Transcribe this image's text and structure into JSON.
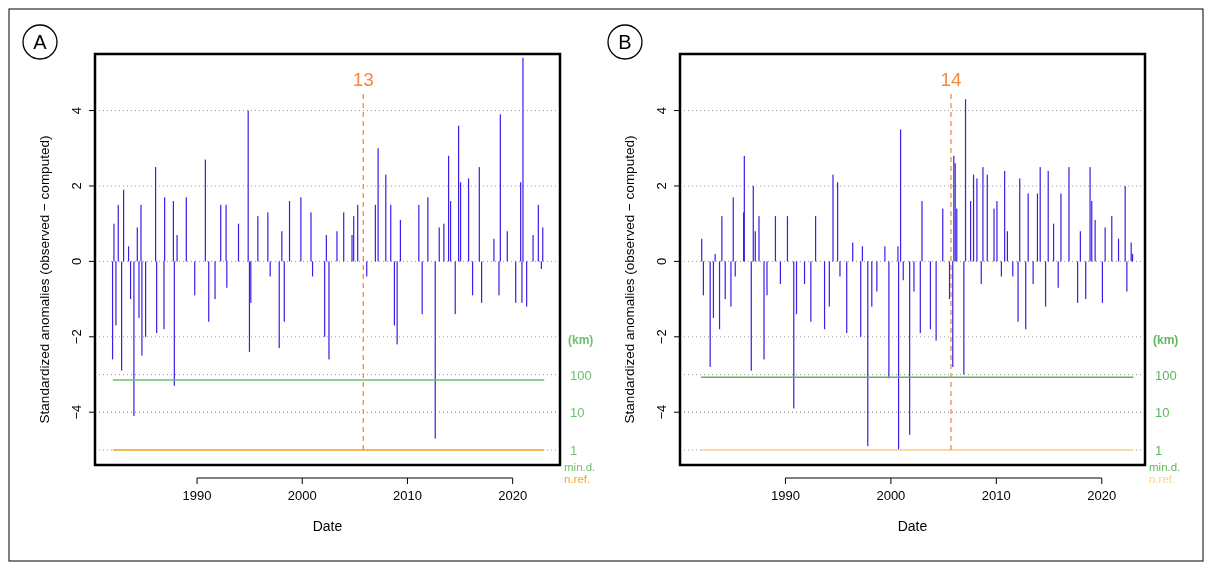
{
  "chart_data": [
    {
      "type": "bar",
      "title": "A",
      "xlabel": "Date",
      "ylabel": "Standardized anomalies (observed − computed)",
      "y2label": "(km)",
      "log": "y2",
      "grid": "y",
      "legend": "bottom right",
      "xlim": [
        1980.3,
        2024.5
      ],
      "xticks": [
        1990,
        2000,
        2010,
        2020
      ],
      "ylim": [
        -5.4,
        5.5
      ],
      "yticks": [
        -4,
        -2,
        0,
        2,
        4
      ],
      "y2lim": [
        0.4,
        32000000000
      ],
      "y2ticks": [
        1,
        10,
        100
      ],
      "ref_lines": [
        {
          "axis": "x",
          "value": 2005.8,
          "color": "#f7893b",
          "line_style": "dashed"
        }
      ],
      "annotations": [
        "13"
      ],
      "series": [
        {
          "color": "#3a1fe6",
          "x": [
            1981.97,
            1982.1,
            1982.29,
            1982.51,
            1982.83,
            1983.02,
            1983.49,
            1983.68,
            1984.0,
            1984.32,
            1984.48,
            1984.67,
            1984.76,
            1985.11,
            1986.06,
            1986.16,
            1986.86,
            1986.92,
            1987.75,
            1987.84,
            1988.1,
            1988.98,
            1989.78,
            1990.79,
            1991.11,
            1991.71,
            1992.25,
            1992.76,
            1992.83,
            1993.94,
            1994.86,
            1994.98,
            1995.11,
            1995.78,
            1996.73,
            1996.95,
            1997.81,
            1998.06,
            1998.29,
            1998.79,
            1999.87,
            2000.83,
            2000.98,
            2002.13,
            2002.29,
            2002.54,
            2003.3,
            2003.94,
            2004.73,
            2004.89,
            2005.27,
            2006.13,
            2006.95,
            2007.21,
            2007.94,
            2008.41,
            2008.76,
            2009.02,
            2009.33,
            2011.08,
            2011.4,
            2011.94,
            2012.64,
            2013.02,
            2013.46,
            2013.91,
            2014.1,
            2014.54,
            2014.86,
            2015.05,
            2015.81,
            2016.19,
            2016.83,
            2017.05,
            2018.22,
            2018.7,
            2018.83,
            2019.49,
            2020.29,
            2020.76,
            2020.88,
            2020.98,
            2021.33,
            2021.94,
            2022.44,
            2022.73,
            2022.86
          ],
          "values": [
            -2.6,
            1.0,
            -1.7,
            1.5,
            -2.9,
            1.9,
            0.4,
            -1.0,
            -4.1,
            0.9,
            -1.5,
            1.5,
            -2.5,
            -2.0,
            2.5,
            -1.9,
            -1.8,
            1.7,
            1.6,
            -3.3,
            0.7,
            1.7,
            -0.9,
            2.7,
            -1.6,
            -1.0,
            1.5,
            1.5,
            -0.7,
            1.0,
            4.0,
            -2.4,
            -1.1,
            1.2,
            1.3,
            -0.4,
            -2.3,
            0.8,
            -1.6,
            1.6,
            1.7,
            1.3,
            -0.4,
            -2.0,
            0.7,
            -2.6,
            0.8,
            1.3,
            0.7,
            1.2,
            1.5,
            -0.4,
            1.5,
            3.0,
            2.3,
            1.5,
            -1.7,
            -2.2,
            1.1,
            1.5,
            -1.4,
            1.7,
            -4.7,
            0.9,
            1.0,
            2.8,
            1.6,
            -1.4,
            3.6,
            2.1,
            2.2,
            -0.9,
            2.5,
            -1.1,
            0.6,
            -0.9,
            3.9,
            0.8,
            -1.1,
            2.1,
            -1.1,
            5.4,
            -1.2,
            0.7,
            1.5,
            -0.2,
            0.9
          ]
        },
        {
          "type": "line",
          "axis": "y2",
          "name": "min.d.",
          "color": "#6cc06c",
          "x": [
            1982,
            2023
          ],
          "values": [
            72,
            72
          ]
        },
        {
          "type": "line",
          "axis": "y2",
          "name": "n.ref.",
          "color": "#f5a623",
          "x": [
            1982,
            2023
          ],
          "values": [
            1,
            1
          ]
        }
      ]
    },
    {
      "type": "bar",
      "title": "B",
      "xlabel": "Date",
      "ylabel": "Standardized anomalies (observed − computed)",
      "y2label": "(km)",
      "log": "y2",
      "grid": "y",
      "legend": "bottom right",
      "xlim": [
        1980.0,
        2024.1
      ],
      "xticks": [
        1990,
        2000,
        2010,
        2020
      ],
      "ylim": [
        -5.4,
        5.5
      ],
      "yticks": [
        -4,
        -2,
        0,
        2,
        4
      ],
      "y2lim": [
        0.4,
        32000000000
      ],
      "y2ticks": [
        1,
        10,
        100
      ],
      "ref_lines": [
        {
          "axis": "x",
          "value": 2005.7,
          "color": "#f7893b",
          "line_style": "dashed"
        }
      ],
      "annotations": [
        "14"
      ],
      "series": [
        {
          "color": "#3a1fe6",
          "x": [
            1982.06,
            1982.22,
            1982.86,
            1983.17,
            1983.33,
            1983.75,
            1983.97,
            1984.29,
            1984.83,
            1985.05,
            1985.24,
            1986.03,
            1986.1,
            1986.76,
            1986.95,
            1987.14,
            1987.49,
            1987.97,
            1988.25,
            1989.05,
            1989.52,
            1990.19,
            1990.79,
            1991.05,
            1991.81,
            1992.41,
            1992.86,
            1993.71,
            1994.16,
            1994.51,
            1994.95,
            1995.17,
            1995.81,
            1996.38,
            1997.14,
            1997.3,
            1997.81,
            1998.19,
            1998.67,
            1999.43,
            1999.81,
            2000.67,
            2000.73,
            2000.92,
            2001.17,
            2001.78,
            2002.19,
            2002.79,
            2002.95,
            2003.75,
            2004.29,
            2004.92,
            2005.56,
            2005.87,
            2005.97,
            2006.1,
            2006.25,
            2006.92,
            2007.08,
            2007.56,
            2007.84,
            2008.16,
            2008.57,
            2008.73,
            2009.14,
            2009.78,
            2010.06,
            2010.48,
            2010.79,
            2011.05,
            2011.56,
            2012.06,
            2012.22,
            2012.79,
            2013.02,
            2013.49,
            2013.9,
            2014.16,
            2014.67,
            2014.92,
            2015.43,
            2015.87,
            2016.13,
            2016.89,
            2017.71,
            2017.97,
            2018.48,
            2018.89,
            2019.05,
            2019.37,
            2020.06,
            2020.32,
            2020.95,
            2021.59,
            2022.22,
            2022.38,
            2022.79,
            2022.92
          ],
          "values": [
            0.6,
            -0.9,
            -2.8,
            -1.5,
            0.2,
            -1.8,
            1.2,
            -1.0,
            -1.2,
            1.7,
            -0.4,
            1.3,
            2.8,
            -2.9,
            2.0,
            0.8,
            1.2,
            -2.6,
            -0.9,
            1.2,
            -0.6,
            1.2,
            -3.9,
            -1.4,
            -0.6,
            -1.6,
            1.2,
            -1.8,
            -1.2,
            2.3,
            2.1,
            -0.4,
            -1.9,
            0.5,
            -2.0,
            0.4,
            -4.9,
            -1.2,
            -0.8,
            0.4,
            -3.1,
            0.4,
            -5.0,
            3.5,
            -0.5,
            -4.6,
            -0.8,
            -1.9,
            1.6,
            -1.8,
            -2.1,
            1.4,
            -1.0,
            -2.8,
            2.8,
            2.6,
            1.4,
            -3.0,
            4.3,
            1.6,
            2.3,
            2.2,
            -0.6,
            2.5,
            2.3,
            1.4,
            1.6,
            -0.4,
            2.4,
            0.8,
            -0.4,
            -1.6,
            2.2,
            -1.8,
            1.8,
            -0.6,
            1.8,
            2.5,
            -1.2,
            2.4,
            1.0,
            -0.7,
            1.8,
            2.5,
            -1.1,
            0.8,
            -1.0,
            2.5,
            1.6,
            1.1,
            -1.1,
            0.9,
            1.2,
            0.6,
            2.0,
            -0.8,
            0.5,
            0.2
          ]
        },
        {
          "type": "line",
          "axis": "y2",
          "name": "min.d.",
          "color": "#5cb85c",
          "x": [
            1982,
            2023
          ],
          "values": [
            85,
            85
          ]
        },
        {
          "type": "line",
          "axis": "y2",
          "name": "n.ref.",
          "color": "#ffd08a",
          "x": [
            1982,
            2023
          ],
          "values": [
            1,
            1
          ]
        }
      ]
    }
  ]
}
